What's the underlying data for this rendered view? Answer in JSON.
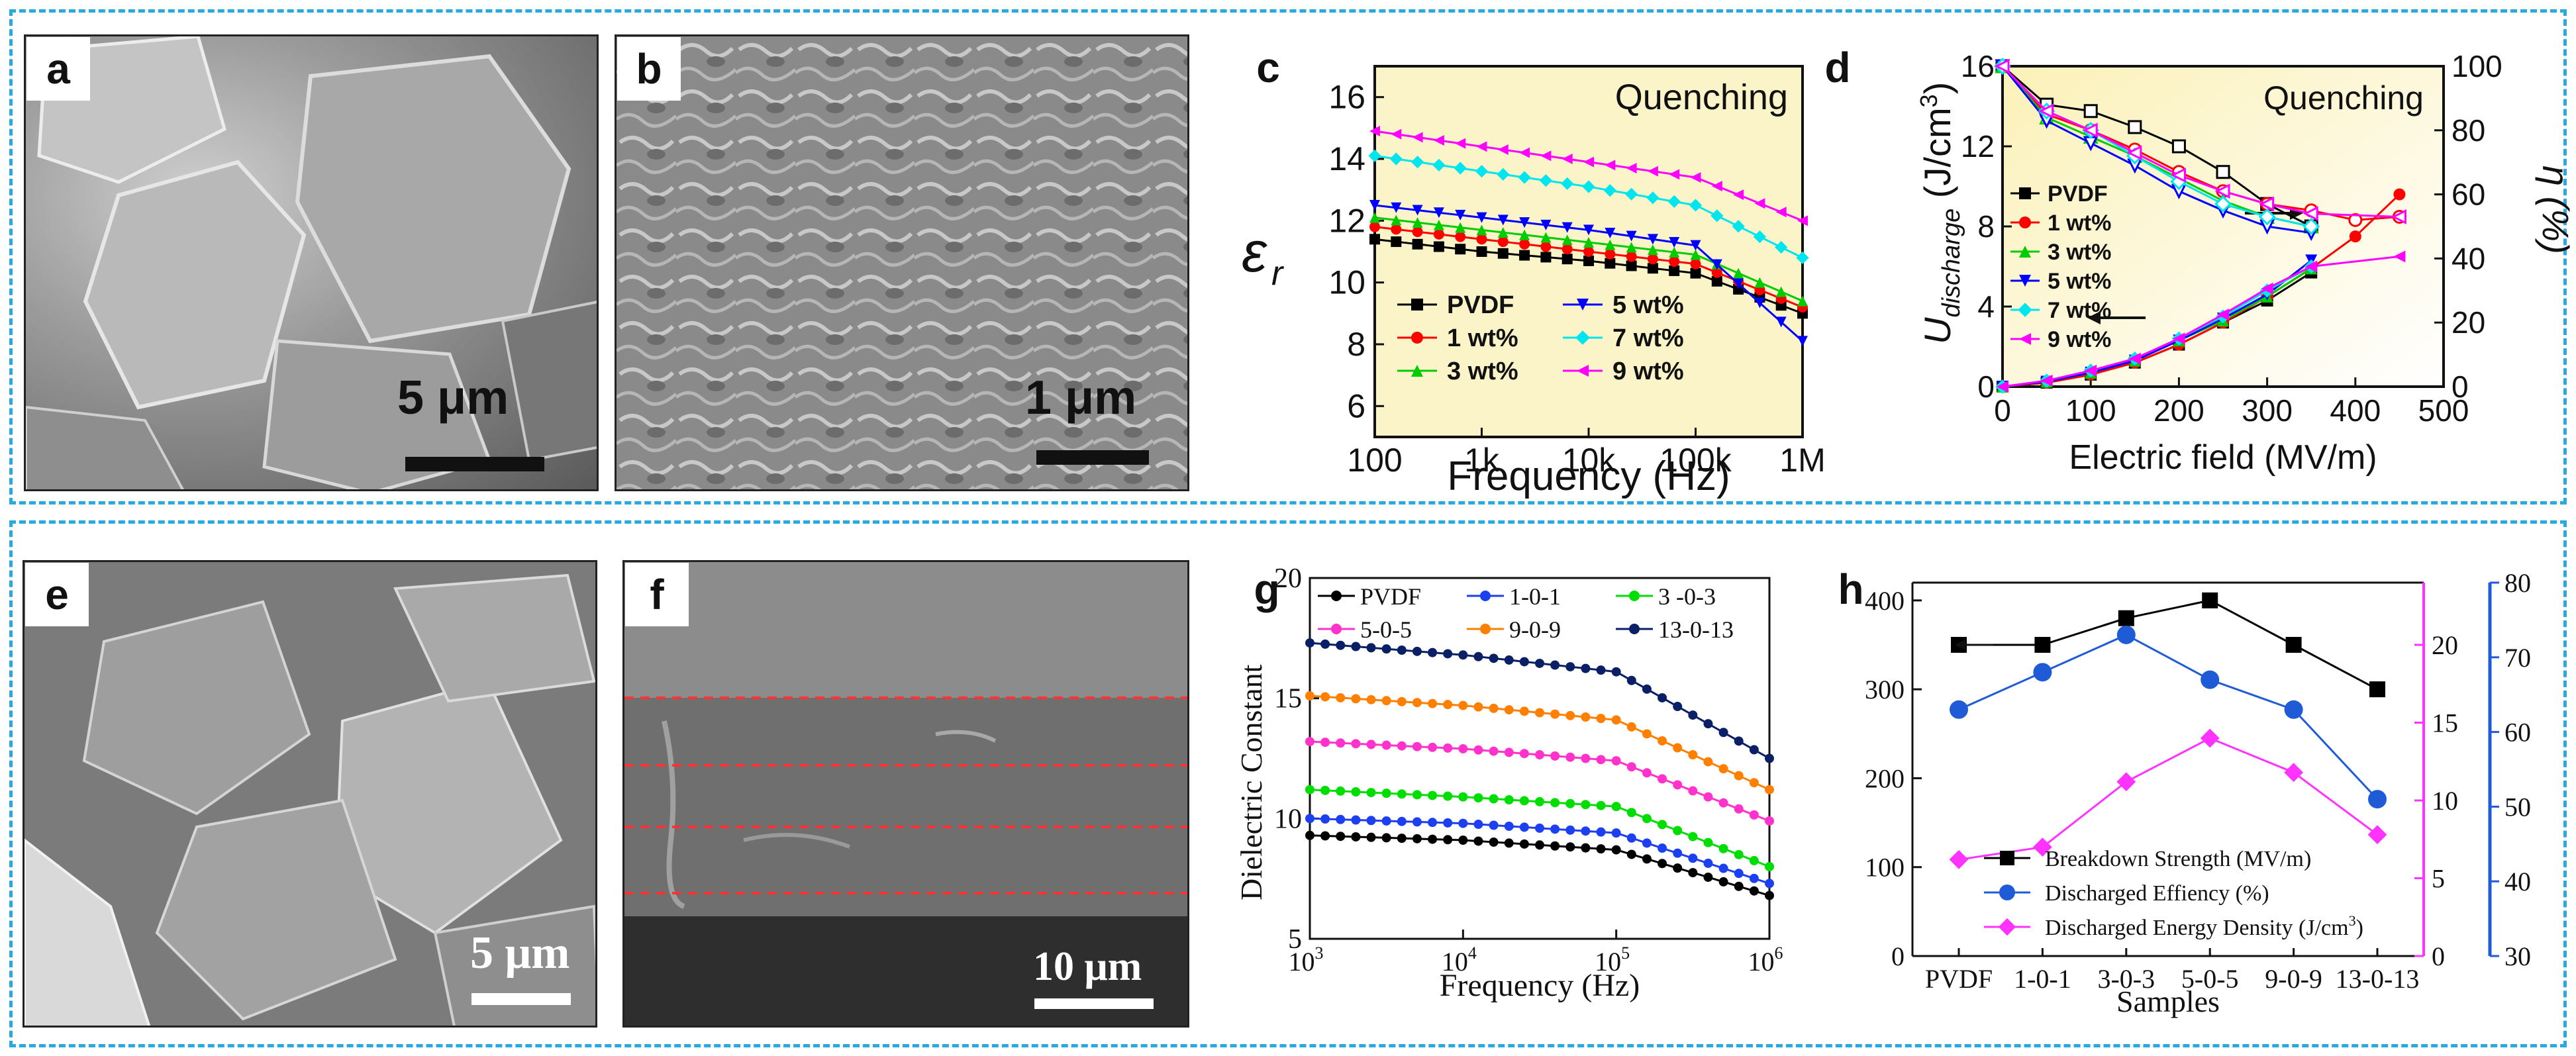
{
  "top_panels": {
    "a": {
      "label": "a",
      "scale_bar": "5 μm"
    },
    "b": {
      "label": "b",
      "scale_bar": "1 μm"
    }
  },
  "bottom_panels": {
    "e": {
      "label": "e",
      "scale_bar": "5 μm"
    },
    "f": {
      "label": "f",
      "scale_bar": "10 μm"
    }
  },
  "chart_data": [
    {
      "id": "c",
      "panel_label": "c",
      "type": "line",
      "annotation": "Quenching",
      "ylabel": "ε",
      "ylabel_sub": "r",
      "xlabel": "Frequency (Hz)",
      "xscale": "log",
      "xlim": [
        100,
        1000000
      ],
      "ylim": [
        5,
        17
      ],
      "xticks": [
        "100",
        "1k",
        "10k",
        "100k",
        "1M"
      ],
      "yticks": [
        "6",
        "8",
        "10",
        "12",
        "14",
        "16"
      ],
      "x": [
        100,
        1000,
        10000,
        100000,
        1000000
      ],
      "legend_position": "bottom-left",
      "series": [
        {
          "name": "PVDF",
          "color": "#000000",
          "marker": "square",
          "values": [
            11.4,
            11.0,
            10.7,
            10.3,
            9.0
          ]
        },
        {
          "name": "1 wt%",
          "color": "#ff0000",
          "marker": "circle",
          "values": [
            11.8,
            11.4,
            11.0,
            10.6,
            9.2
          ]
        },
        {
          "name": "3 wt%",
          "color": "#00cc00",
          "marker": "triangle-up",
          "values": [
            12.1,
            11.7,
            11.3,
            10.9,
            9.4
          ]
        },
        {
          "name": "5 wt%",
          "color": "#0000ff",
          "marker": "triangle-down",
          "values": [
            12.5,
            12.1,
            11.7,
            11.2,
            8.1
          ]
        },
        {
          "name": "7 wt%",
          "color": "#00e5ee",
          "marker": "diamond",
          "values": [
            14.1,
            13.6,
            13.1,
            12.5,
            10.8
          ]
        },
        {
          "name": "9 wt%",
          "color": "#ff00ff",
          "marker": "triangle-left",
          "values": [
            14.9,
            14.4,
            13.9,
            13.4,
            12.0
          ]
        }
      ]
    },
    {
      "id": "d",
      "panel_label": "d",
      "type": "line",
      "annotation": "Quenching",
      "ylabel": "U",
      "ylabel_sub": "discharge",
      "ylabel_unit": " (J/cm",
      "ylabel_sup": "3",
      "ylabel_close": ")",
      "y2label": "η (%)",
      "xlabel": "Electric field (MV/m)",
      "xlim": [
        0,
        500
      ],
      "ylim": [
        0,
        16
      ],
      "y2lim": [
        0,
        100
      ],
      "xticks": [
        "0",
        "100",
        "200",
        "300",
        "400",
        "500"
      ],
      "yticks": [
        "0",
        "4",
        "8",
        "12",
        "16"
      ],
      "y2ticks": [
        "0",
        "20",
        "40",
        "60",
        "80",
        "100"
      ],
      "legend_position": "left",
      "series": [
        {
          "name": "PVDF",
          "color": "#000000",
          "marker": "square",
          "x": [
            0,
            50,
            100,
            150,
            200,
            250,
            300,
            350
          ],
          "energy": [
            0,
            0.2,
            0.6,
            1.2,
            2.1,
            3.2,
            4.3,
            5.7
          ],
          "efficiency": [
            100,
            88,
            86,
            81,
            75,
            67,
            57,
            50
          ]
        },
        {
          "name": "1 wt%",
          "color": "#ff0000",
          "marker": "circle",
          "x": [
            0,
            50,
            100,
            150,
            200,
            250,
            300,
            350,
            400,
            450
          ],
          "energy": [
            0,
            0.2,
            0.6,
            1.2,
            2.1,
            3.2,
            4.5,
            5.9,
            7.5,
            9.6
          ],
          "efficiency": [
            100,
            85,
            80,
            74,
            67,
            61,
            57,
            55,
            52,
            53
          ]
        },
        {
          "name": "3 wt%",
          "color": "#00cc00",
          "marker": "triangle-up",
          "x": [
            0,
            50,
            100,
            150,
            200,
            250,
            300,
            350
          ],
          "energy": [
            0,
            0.25,
            0.7,
            1.3,
            2.3,
            3.3,
            4.5,
            5.9
          ],
          "efficiency": [
            100,
            84,
            78,
            72,
            65,
            58,
            53,
            50
          ]
        },
        {
          "name": "5 wt%",
          "color": "#0000ff",
          "marker": "triangle-down",
          "x": [
            0,
            50,
            100,
            150,
            200,
            250,
            300,
            350
          ],
          "energy": [
            0,
            0.25,
            0.7,
            1.3,
            2.3,
            3.4,
            4.6,
            6.3
          ],
          "efficiency": [
            100,
            83,
            76,
            69,
            61,
            55,
            50,
            48
          ]
        },
        {
          "name": "7 wt%",
          "color": "#00e5ee",
          "marker": "diamond",
          "x": [
            0,
            50,
            100,
            150,
            200,
            250,
            300,
            350
          ],
          "energy": [
            0,
            0.3,
            0.8,
            1.4,
            2.4,
            3.5,
            4.8,
            6.0
          ],
          "efficiency": [
            100,
            86,
            80,
            72,
            64,
            57,
            53,
            50
          ]
        },
        {
          "name": "9 wt%",
          "color": "#ff00ff",
          "marker": "triangle-left",
          "x": [
            0,
            50,
            100,
            150,
            200,
            250,
            300,
            350,
            450
          ],
          "energy": [
            0,
            0.3,
            0.8,
            1.4,
            2.4,
            3.6,
            4.9,
            6.0,
            6.5
          ],
          "efficiency": [
            100,
            86,
            80,
            73,
            66,
            61,
            57,
            54,
            53
          ]
        }
      ]
    },
    {
      "id": "g",
      "panel_label": "g",
      "type": "line",
      "ylabel": "Dielectric Constant",
      "xlabel": "Frequency (Hz)",
      "xscale": "log",
      "xlim": [
        1000,
        1000000
      ],
      "ylim": [
        5,
        20
      ],
      "xticks_base": [
        "10",
        "10",
        "10",
        "10"
      ],
      "xticks_exp": [
        "3",
        "4",
        "5",
        "6"
      ],
      "yticks": [
        "5",
        "10",
        "15",
        "20"
      ],
      "x": [
        1000,
        10000,
        100000,
        1000000
      ],
      "legend_position": "top",
      "series": [
        {
          "name": "PVDF",
          "color": "#000000",
          "values": [
            9.3,
            9.1,
            8.7,
            6.8
          ]
        },
        {
          "name": "1-0-1",
          "color": "#1c3ff0",
          "values": [
            10.0,
            9.8,
            9.4,
            7.3
          ]
        },
        {
          "name": "3 -0-3",
          "color": "#00dd00",
          "values": [
            11.2,
            10.9,
            10.5,
            8.0
          ]
        },
        {
          "name": "5-0-5",
          "color": "#ff33cc",
          "values": [
            13.2,
            12.9,
            12.4,
            9.9
          ]
        },
        {
          "name": "9-0-9",
          "color": "#ff8000",
          "values": [
            15.1,
            14.7,
            14.1,
            11.2
          ]
        },
        {
          "name": "13-0-13",
          "color": "#0a1f66",
          "values": [
            17.3,
            16.8,
            16.1,
            12.5
          ]
        }
      ]
    },
    {
      "id": "h",
      "panel_label": "h",
      "type": "line",
      "xlabel": "Samples",
      "categories": [
        "PVDF",
        "1-0-1",
        "3-0-3",
        "5-0-5",
        "9-0-9",
        "13-0-13"
      ],
      "ylim_left": [
        0,
        420
      ],
      "yticks_left": [
        "0",
        "100",
        "200",
        "300",
        "400"
      ],
      "ylim_right_energy": [
        0,
        24
      ],
      "yticks_right_energy": [
        "0",
        "5",
        "10",
        "15",
        "20"
      ],
      "ylim_right_eff": [
        30,
        80
      ],
      "yticks_right_eff": [
        "30",
        "40",
        "50",
        "60",
        "70",
        "80"
      ],
      "legend_position": "bottom-right",
      "series": [
        {
          "name": "Breakdown Strength (MV/m)",
          "color": "#000000",
          "marker": "square",
          "axis": "left",
          "values": [
            350,
            350,
            380,
            400,
            350,
            300
          ]
        },
        {
          "name": "Discharged Effiency (%)",
          "color": "#1f5bd6",
          "marker": "circle",
          "axis": "right-outer",
          "values": [
            63,
            68,
            73,
            67,
            63,
            51
          ]
        },
        {
          "name": "Discharged Energy Density (J/cm",
          "name_sup": "3",
          "name_close": ")",
          "color": "#ff33ff",
          "marker": "diamond",
          "axis": "right-inner",
          "values": [
            6.2,
            7.0,
            11.2,
            14.0,
            11.8,
            7.8
          ]
        }
      ]
    }
  ]
}
